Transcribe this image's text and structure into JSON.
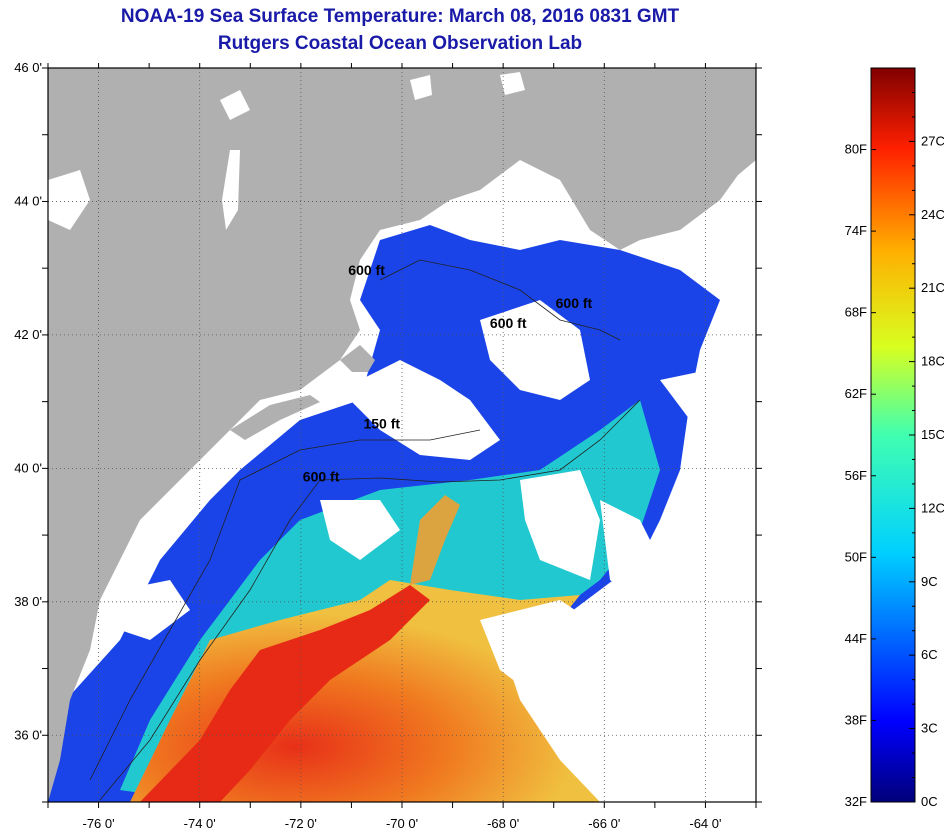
{
  "header": {
    "title": "NOAA-19 Sea Surface Temperature:  March 08, 2016 0831 GMT",
    "subtitle": "Rutgers Coastal Ocean Observation Lab"
  },
  "map": {
    "lon_range": [
      -77,
      -63
    ],
    "lat_range": [
      35,
      46
    ],
    "lon_ticks": [
      -76,
      -74,
      -72,
      -70,
      -68,
      -66,
      -64
    ],
    "lon_labels": [
      "-76 0'",
      "-74 0'",
      "-72 0'",
      "-70 0'",
      "-68 0'",
      "-66 0'",
      "-64 0'"
    ],
    "lat_ticks": [
      46,
      44,
      42,
      40,
      38,
      36
    ],
    "lat_labels": [
      "46 0'",
      "44 0'",
      "42 0'",
      "40 0'",
      "38 0'",
      "36 0'"
    ],
    "contour_labels": [
      {
        "text": "600 ft",
        "lon": -70.7,
        "lat": 42.9
      },
      {
        "text": "600 ft",
        "lon": -66.6,
        "lat": 42.4
      },
      {
        "text": "600 ft",
        "lon": -67.9,
        "lat": 42.1
      },
      {
        "text": "150 ft",
        "lon": -70.4,
        "lat": 40.6
      },
      {
        "text": "600 ft",
        "lon": -71.6,
        "lat": 39.8
      }
    ],
    "colors": {
      "land": "#b0b0b0",
      "cloud": "#ffffff",
      "cold": "#1a3fe0",
      "mid": "#18d8c8",
      "warm": "#f5a020",
      "hot": "#e83018"
    }
  },
  "colorbar": {
    "fahrenheit_labels": [
      "80F",
      "74F",
      "68F",
      "62F",
      "56F",
      "50F",
      "44F",
      "38F",
      "32F"
    ],
    "celsius_labels": [
      "27C",
      "24C",
      "21C",
      "18C",
      "15C",
      "12C",
      "9C",
      "6C",
      "3C",
      "0C"
    ]
  }
}
